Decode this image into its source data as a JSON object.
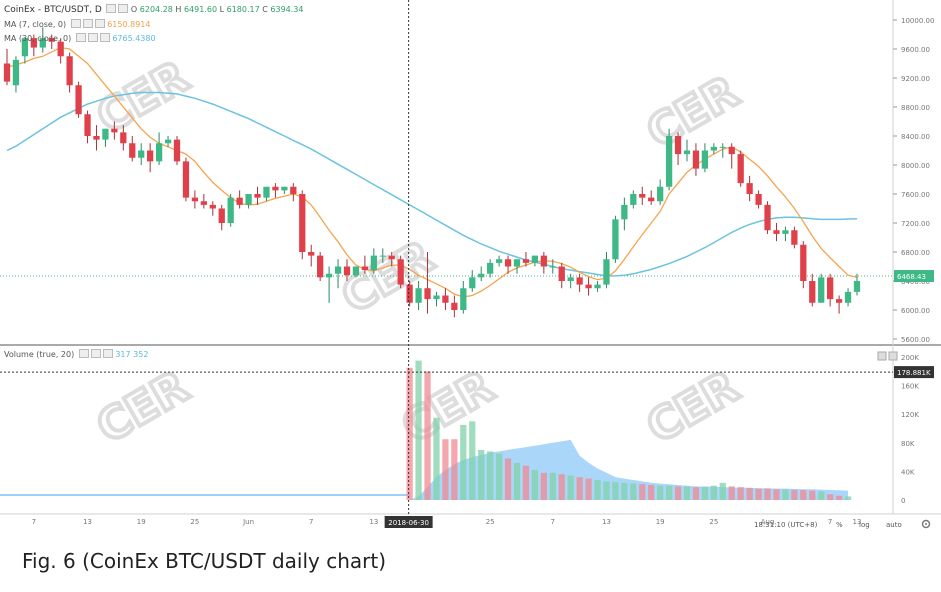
{
  "header": {
    "title": "CoinEx - BTC/USDT, D",
    "ohlc": {
      "o_label": "O",
      "o": "6204.28",
      "h_label": "H",
      "h": "6491.60",
      "l_label": "L",
      "l": "6180.17",
      "c_label": "C",
      "c": "6394.34"
    },
    "ma1_label": "MA (7, close, 0)",
    "ma1_value": "6150.8914",
    "ma2_label": "MA (30, close, 0)",
    "ma2_value": "6765.4380"
  },
  "volume_header": {
    "label": "Volume (true, 20)",
    "v1": "317",
    "v2": "352"
  },
  "crosshair": {
    "date_label": "2018-06-30",
    "volume_label": "178.881K"
  },
  "price_marker": "6468.43",
  "footer": {
    "time": "18:31:10 (UTC+8)",
    "percent": "%",
    "log": "log",
    "auto": "auto"
  },
  "caption": "Fig. 6  (CoinEx BTC/USDT daily chart)",
  "watermark": "CER",
  "colors": {
    "up": "#3db886",
    "down": "#e0404a",
    "ma7": "#f5a44f",
    "ma30": "#6cc3e0",
    "vol_area": "#64b5f6"
  },
  "chart_data": {
    "type": "candlestick",
    "title": "CoinEx - BTC/USDT, D",
    "price_axis": {
      "min": 5600,
      "max": 10000,
      "ticks": [
        "10000.00",
        "9600.00",
        "9200.00",
        "8800.00",
        "8400.00",
        "8000.00",
        "7600.00",
        "7200.00",
        "6800.00",
        "6400.00",
        "6000.00",
        "5600.00"
      ]
    },
    "x_ticks": [
      "7",
      "13",
      "19",
      "25",
      "Jun",
      "7",
      "13",
      "19",
      "25",
      "7",
      "13",
      "19",
      "25",
      "Aug",
      "7",
      "13"
    ],
    "volume_axis": {
      "ticks": [
        "200K",
        "160K",
        "120K",
        "80K",
        "40K",
        "0"
      ]
    },
    "candles": [
      [
        9400,
        9600,
        9150,
        9100
      ],
      [
        9100,
        9500,
        9450,
        9000
      ],
      [
        9500,
        9550,
        9750,
        9400
      ],
      [
        9750,
        9800,
        9620,
        9500
      ],
      [
        9620,
        9900,
        9750,
        9550
      ],
      [
        9750,
        9800,
        9700,
        9600
      ],
      [
        9700,
        9750,
        9500,
        9400
      ],
      [
        9500,
        9550,
        9100,
        9000
      ],
      [
        9100,
        9150,
        8700,
        8650
      ],
      [
        8700,
        8750,
        8400,
        8300
      ],
      [
        8400,
        8550,
        8350,
        8200
      ],
      [
        8350,
        8500,
        8500,
        8250
      ],
      [
        8500,
        8600,
        8450,
        8350
      ],
      [
        8450,
        8550,
        8300,
        8200
      ],
      [
        8300,
        8400,
        8100,
        8050
      ],
      [
        8100,
        8300,
        8200,
        8000
      ],
      [
        8200,
        8300,
        8050,
        7900
      ],
      [
        8050,
        8450,
        8300,
        8000
      ],
      [
        8300,
        8400,
        8350,
        8250
      ],
      [
        8350,
        8400,
        8050,
        8000
      ],
      [
        8050,
        8100,
        7550,
        7500
      ],
      [
        7550,
        7650,
        7500,
        7400
      ],
      [
        7500,
        7600,
        7450,
        7400
      ],
      [
        7450,
        7500,
        7400,
        7300
      ],
      [
        7400,
        7450,
        7200,
        7100
      ],
      [
        7200,
        7600,
        7550,
        7150
      ],
      [
        7550,
        7650,
        7450,
        7400
      ],
      [
        7450,
        7550,
        7600,
        7400
      ],
      [
        7600,
        7700,
        7550,
        7450
      ],
      [
        7550,
        7650,
        7700,
        7500
      ],
      [
        7700,
        7750,
        7650,
        7550
      ],
      [
        7650,
        7700,
        7700,
        7600
      ],
      [
        7700,
        7750,
        7600,
        7500
      ],
      [
        7600,
        7650,
        6800,
        6700
      ],
      [
        6800,
        6900,
        6750,
        6600
      ],
      [
        6750,
        6800,
        6450,
        6400
      ],
      [
        6450,
        6600,
        6500,
        6100
      ],
      [
        6500,
        6700,
        6600,
        6300
      ],
      [
        6600,
        6700,
        6480,
        6400
      ],
      [
        6480,
        6550,
        6600,
        6450
      ],
      [
        6600,
        6750,
        6550,
        6500
      ],
      [
        6550,
        6850,
        6750,
        6500
      ],
      [
        6750,
        6850,
        6750,
        6650
      ],
      [
        6750,
        6800,
        6700,
        6600
      ],
      [
        6700,
        6750,
        6350,
        6300
      ],
      [
        6350,
        6400,
        6100,
        6050
      ],
      [
        6100,
        6400,
        6300,
        6000
      ],
      [
        6300,
        6800,
        6150,
        5950
      ],
      [
        6150,
        6250,
        6200,
        6050
      ],
      [
        6200,
        6300,
        6100,
        6000
      ],
      [
        6100,
        6200,
        6000,
        5900
      ],
      [
        6000,
        6400,
        6300,
        5950
      ],
      [
        6300,
        6550,
        6450,
        6250
      ],
      [
        6450,
        6600,
        6500,
        6400
      ],
      [
        6500,
        6700,
        6650,
        6450
      ],
      [
        6650,
        6750,
        6700,
        6600
      ],
      [
        6700,
        6750,
        6600,
        6500
      ],
      [
        6600,
        6700,
        6700,
        6500
      ],
      [
        6700,
        6800,
        6650,
        6600
      ],
      [
        6650,
        6750,
        6750,
        6600
      ],
      [
        6750,
        6800,
        6600,
        6500
      ],
      [
        6600,
        6700,
        6600,
        6500
      ],
      [
        6600,
        6650,
        6400,
        6300
      ],
      [
        6400,
        6500,
        6450,
        6300
      ],
      [
        6450,
        6500,
        6350,
        6250
      ],
      [
        6350,
        6450,
        6300,
        6200
      ],
      [
        6300,
        6400,
        6350,
        6250
      ],
      [
        6350,
        6800,
        6700,
        6300
      ],
      [
        6700,
        7300,
        7250,
        6650
      ],
      [
        7250,
        7550,
        7450,
        7100
      ],
      [
        7450,
        7650,
        7600,
        7400
      ],
      [
        7600,
        7700,
        7550,
        7450
      ],
      [
        7550,
        7650,
        7500,
        7450
      ],
      [
        7500,
        7800,
        7700,
        7450
      ],
      [
        7700,
        8500,
        8400,
        7650
      ],
      [
        8400,
        8450,
        8150,
        8000
      ],
      [
        8150,
        8350,
        8200,
        8050
      ],
      [
        8200,
        8300,
        7950,
        7850
      ],
      [
        7950,
        8300,
        8200,
        7900
      ],
      [
        8200,
        8300,
        8250,
        8150
      ],
      [
        8250,
        8300,
        8250,
        8100
      ],
      [
        8250,
        8300,
        8150,
        7950
      ],
      [
        8150,
        8200,
        7750,
        7700
      ],
      [
        7750,
        7850,
        7600,
        7500
      ],
      [
        7600,
        7650,
        7450,
        7400
      ],
      [
        7450,
        7500,
        7100,
        7050
      ],
      [
        7100,
        7200,
        7050,
        6950
      ],
      [
        7050,
        7150,
        7100,
        6950
      ],
      [
        7100,
        7150,
        6900,
        6850
      ],
      [
        6900,
        6950,
        6400,
        6300
      ],
      [
        6400,
        6500,
        6100,
        6050
      ],
      [
        6100,
        6500,
        6450,
        6100
      ],
      [
        6450,
        6500,
        6150,
        6050
      ],
      [
        6150,
        6200,
        6100,
        5950
      ],
      [
        6100,
        6300,
        6250,
        6050
      ],
      [
        6250,
        6500,
        6400,
        6200
      ]
    ],
    "ma7": [
      9350,
      9380,
      9420,
      9470,
      9500,
      9560,
      9620,
      9600,
      9500,
      9400,
      9250,
      9100,
      8950,
      8800,
      8650,
      8500,
      8380,
      8300,
      8250,
      8200,
      8150,
      8050,
      7900,
      7760,
      7650,
      7550,
      7470,
      7450,
      7460,
      7500,
      7540,
      7570,
      7600,
      7560,
      7450,
      7280,
      7100,
      6940,
      6760,
      6620,
      6560,
      6540,
      6580,
      6620,
      6620,
      6560,
      6480,
      6420,
      6360,
      6300,
      6220,
      6180,
      6200,
      6260,
      6340,
      6430,
      6520,
      6580,
      6620,
      6660,
      6680,
      6670,
      6640,
      6590,
      6520,
      6460,
      6420,
      6440,
      6540,
      6700,
      6870,
      7040,
      7200,
      7360,
      7600,
      7750,
      7900,
      8000,
      8080,
      8150,
      8220,
      8250,
      8180,
      8080,
      7980,
      7850,
      7700,
      7560,
      7400,
      7220,
      7020,
      6850,
      6720,
      6600,
      6480,
      6450
    ],
    "ma30": [
      8200,
      8260,
      8340,
      8420,
      8500,
      8580,
      8660,
      8720,
      8780,
      8840,
      8880,
      8920,
      8950,
      8970,
      8990,
      9000,
      9000,
      9000,
      8990,
      8980,
      8950,
      8920,
      8880,
      8840,
      8790,
      8740,
      8690,
      8640,
      8580,
      8520,
      8460,
      8400,
      8340,
      8280,
      8220,
      8150,
      8080,
      8010,
      7940,
      7870,
      7800,
      7730,
      7660,
      7590,
      7520,
      7450,
      7380,
      7310,
      7240,
      7170,
      7100,
      7030,
      6970,
      6910,
      6860,
      6810,
      6770,
      6730,
      6690,
      6660,
      6630,
      6600,
      6570,
      6550,
      6530,
      6510,
      6490,
      6470,
      6470,
      6480,
      6500,
      6530,
      6560,
      6600,
      6640,
      6690,
      6740,
      6800,
      6860,
      6930,
      7000,
      7070,
      7130,
      7180,
      7220,
      7250,
      7270,
      7280,
      7280,
      7270,
      7260,
      7250,
      7250,
      7250,
      7255,
      7260
    ],
    "volume_start_index": 45,
    "volume": [
      185000,
      195000,
      180000,
      115000,
      85000,
      85000,
      105000,
      110000,
      70000,
      68000,
      65000,
      58000,
      52000,
      48000,
      42000,
      38000,
      38000,
      36000,
      34000,
      32000,
      30000,
      28000,
      26000,
      25000,
      24000,
      23000,
      22000,
      21000,
      20000,
      20000,
      19000,
      19000,
      18000,
      18000,
      20000,
      24000,
      19000,
      18000,
      17000,
      16000,
      16000,
      15000,
      15000,
      14000,
      14000,
      13000,
      12000,
      8000,
      6000,
      5000
    ]
  }
}
